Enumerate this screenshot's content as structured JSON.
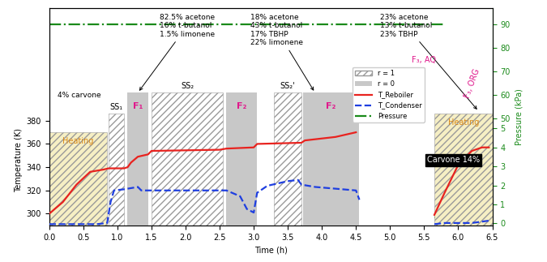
{
  "chart_data": {
    "type": "line",
    "x_label": "Time (h)",
    "y_label": "Temperature (K)",
    "y2_label": "Pressure (kPa)",
    "xlim": [
      0.0,
      6.5
    ],
    "xticks": [
      0.0,
      0.5,
      1.0,
      1.5,
      2.0,
      2.5,
      3.0,
      3.5,
      4.0,
      4.5,
      5.0,
      5.5,
      6.0,
      6.5
    ],
    "ylim": [
      290,
      477
    ],
    "yticks": [
      300,
      320,
      340,
      360,
      380
    ],
    "y2lim": [
      -0.1,
      97
    ],
    "y2ticks": [
      0,
      1,
      2,
      3,
      4,
      5,
      50,
      60,
      70,
      80,
      90
    ],
    "legend": "right",
    "series": [
      {
        "name": "T_Reboiler",
        "color": "#e8231f",
        "line_style": "solid",
        "x": [
          0.0,
          0.2,
          0.4,
          0.6,
          0.8,
          0.87,
          1.1,
          1.15,
          1.2,
          1.3,
          1.45,
          1.5,
          2.5,
          2.6,
          3.0,
          3.05,
          3.7,
          3.75,
          4.2,
          4.5,
          null,
          5.65,
          5.8,
          6.0,
          6.2,
          6.35,
          6.45
        ],
        "values": [
          300,
          310,
          325,
          336,
          338,
          339,
          339,
          340,
          344,
          349,
          351,
          354,
          355,
          356,
          357,
          360,
          361,
          363,
          366,
          370,
          null,
          299,
          318,
          342,
          354,
          357,
          357
        ]
      },
      {
        "name": "T_Condenser",
        "color": "#1f3fe0",
        "line_style": "dashed",
        "x": [
          0.0,
          0.7,
          0.85,
          0.9,
          0.95,
          1.1,
          1.3,
          1.35,
          1.45,
          1.5,
          2.55,
          2.6,
          2.8,
          2.9,
          3.0,
          3.05,
          3.2,
          3.5,
          3.65,
          3.7,
          3.9,
          4.5,
          4.55,
          null,
          5.65,
          5.8,
          6.0,
          6.2,
          6.45
        ],
        "values": [
          291,
          291,
          292,
          310,
          320,
          321,
          323,
          320,
          320,
          320,
          320,
          320,
          315,
          304,
          301,
          318,
          324,
          328,
          329,
          325,
          323,
          320,
          312,
          null,
          291,
          292,
          292,
          292,
          294
        ]
      },
      {
        "name": "Pressure",
        "color": "#1a8a1a",
        "line_style": "dashdot",
        "axis": "y2",
        "x": [
          0.0,
          5.8,
          null,
          5.65,
          6.45
        ],
        "values": [
          90,
          90,
          null,
          0.3,
          0.3
        ]
      }
    ],
    "regions": [
      {
        "label": "Heating",
        "x": [
          0.0,
          0.85
        ],
        "ymax": 370,
        "r": 1,
        "color": "#f6efc4"
      },
      {
        "label": "SS₁",
        "x": [
          0.87,
          1.1
        ],
        "ymax": 386,
        "r": 1
      },
      {
        "label": "F₁",
        "x": [
          1.15,
          1.45
        ],
        "ymax": 404,
        "r": 0
      },
      {
        "label": "SS₂",
        "x": [
          1.5,
          2.55
        ],
        "ymax": 404,
        "r": 1
      },
      {
        "label": "F₂",
        "x": [
          2.6,
          3.05
        ],
        "ymax": 404,
        "r": 0
      },
      {
        "label": "SS₂'",
        "x": [
          3.3,
          3.7
        ],
        "ymax": 404,
        "r": 1
      },
      {
        "label": "F₂",
        "x": [
          3.72,
          4.55
        ],
        "ymax": 404,
        "r": 0
      },
      {
        "label": "Heating",
        "x": [
          5.65,
          6.5
        ],
        "ymax": 386,
        "r": 1,
        "color": "#f6efc4"
      }
    ],
    "region_legend": [
      {
        "r": 1,
        "label": "r = 1"
      },
      {
        "r": 0,
        "label": "r = 0"
      }
    ],
    "annotations": [
      "4% carvone",
      "82.5% acetone\n16% t-butanol\n1.5% limonene",
      "18% acetone\n43% t-butanol\n17% TBHP\n22% limonene",
      "23% acetone\n13% t-butanol\n23% TBHP",
      "F₃, AQ",
      "F₃, ORG",
      "Carvone 14%"
    ]
  }
}
